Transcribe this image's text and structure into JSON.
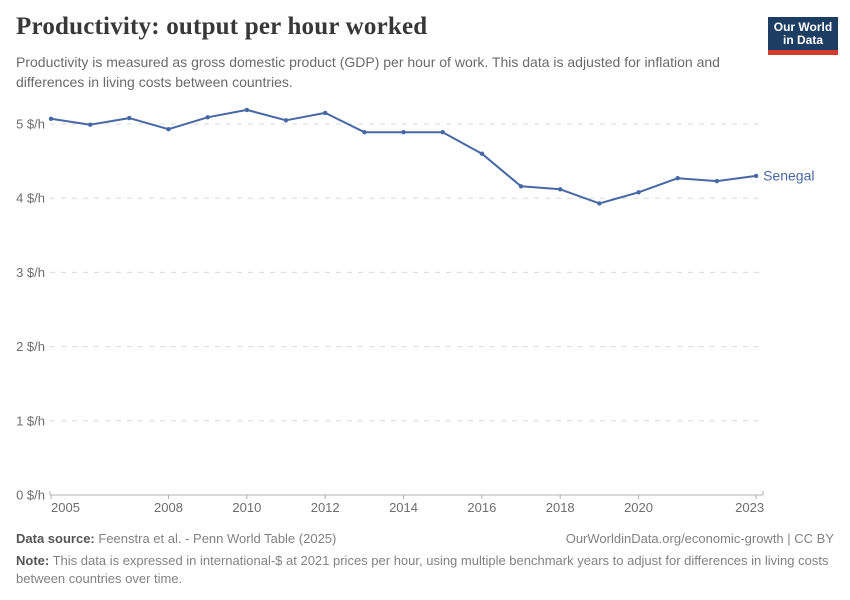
{
  "header": {
    "title": "Productivity: output per hour worked",
    "subtitle": "Productivity is measured as gross domestic product (GDP) per hour of work. This data is adjusted for inflation and differences in living costs between countries.",
    "logo": {
      "line1": "Our World",
      "line2": "in Data",
      "bg": "#1d3d63",
      "accent": "#d13b29"
    }
  },
  "chart_data": {
    "type": "line",
    "title": "Productivity: output per hour worked",
    "x": [
      2005,
      2006,
      2007,
      2008,
      2009,
      2010,
      2011,
      2012,
      2013,
      2014,
      2015,
      2016,
      2017,
      2018,
      2019,
      2020,
      2021,
      2022,
      2023
    ],
    "series": [
      {
        "name": "Senegal",
        "color": "#4668a5",
        "values": [
          5.07,
          4.99,
          5.08,
          4.93,
          5.09,
          5.19,
          5.05,
          5.15,
          4.89,
          4.89,
          4.89,
          4.6,
          4.16,
          4.12,
          3.93,
          4.08,
          4.27,
          4.23,
          4.3
        ]
      }
    ],
    "y_unit": "$/h",
    "yticks": [
      0,
      1,
      2,
      3,
      4,
      5
    ],
    "ytick_labels": [
      "0 $/h",
      "1 $/h",
      "2 $/h",
      "3 $/h",
      "4 $/h",
      "5 $/h"
    ],
    "xticks": [
      2005,
      2008,
      2010,
      2012,
      2014,
      2016,
      2018,
      2020,
      2023
    ],
    "ylim": [
      0,
      5.5
    ],
    "grid": "horizontal-dashed",
    "legend": "end-of-line-label"
  },
  "footer": {
    "datasource_label": "Data source:",
    "datasource_text": "Feenstra et al. - Penn World Table (2025)",
    "link": "OurWorldinData.org/economic-growth | CC BY",
    "note_label": "Note:",
    "note_text": "This data is expressed in international-$ at 2021 prices per hour, using multiple benchmark years to adjust for differences in living costs between countries over time."
  }
}
